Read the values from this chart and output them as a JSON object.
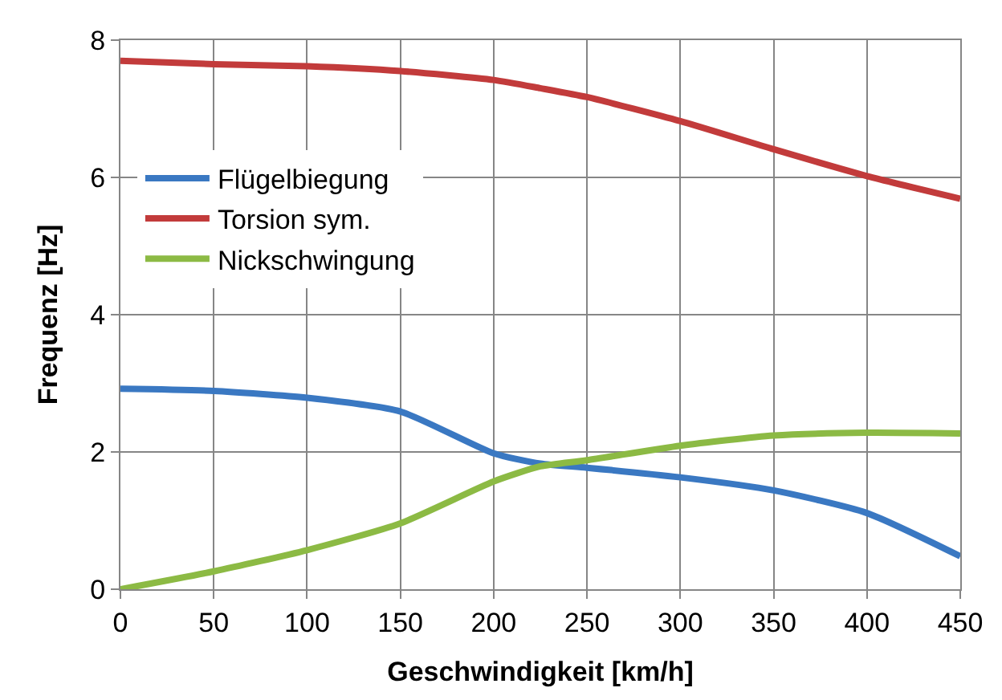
{
  "chart_data": {
    "type": "line",
    "xlabel": "Geschwindigkeit [km/h]",
    "ylabel": "Frequenz [Hz]",
    "x": [
      0,
      50,
      100,
      150,
      200,
      225,
      250,
      300,
      350,
      400,
      450
    ],
    "series": [
      {
        "name": "Flügelbiegung",
        "color": "#3a78c2",
        "values": [
          2.92,
          2.89,
          2.79,
          2.59,
          1.98,
          1.83,
          1.77,
          1.63,
          1.44,
          1.11,
          0.48
        ]
      },
      {
        "name": "Torsion sym.",
        "color": "#c23b3b",
        "values": [
          7.7,
          7.65,
          7.62,
          7.55,
          7.42,
          7.3,
          7.17,
          6.82,
          6.41,
          6.02,
          5.69
        ]
      },
      {
        "name": "Nickschwingung",
        "color": "#8cba44",
        "values": [
          0,
          0.26,
          0.57,
          0.96,
          1.57,
          1.79,
          1.88,
          2.09,
          2.24,
          2.28,
          2.27
        ]
      }
    ],
    "xlim": [
      0,
      450
    ],
    "xticks": [
      0,
      50,
      100,
      150,
      200,
      250,
      300,
      350,
      400,
      450
    ],
    "ylim": [
      0,
      8
    ],
    "yticks": [
      0,
      2,
      4,
      6,
      8
    ],
    "grid": true,
    "legend": "top left",
    "marker": "none",
    "line_style": "solid"
  }
}
